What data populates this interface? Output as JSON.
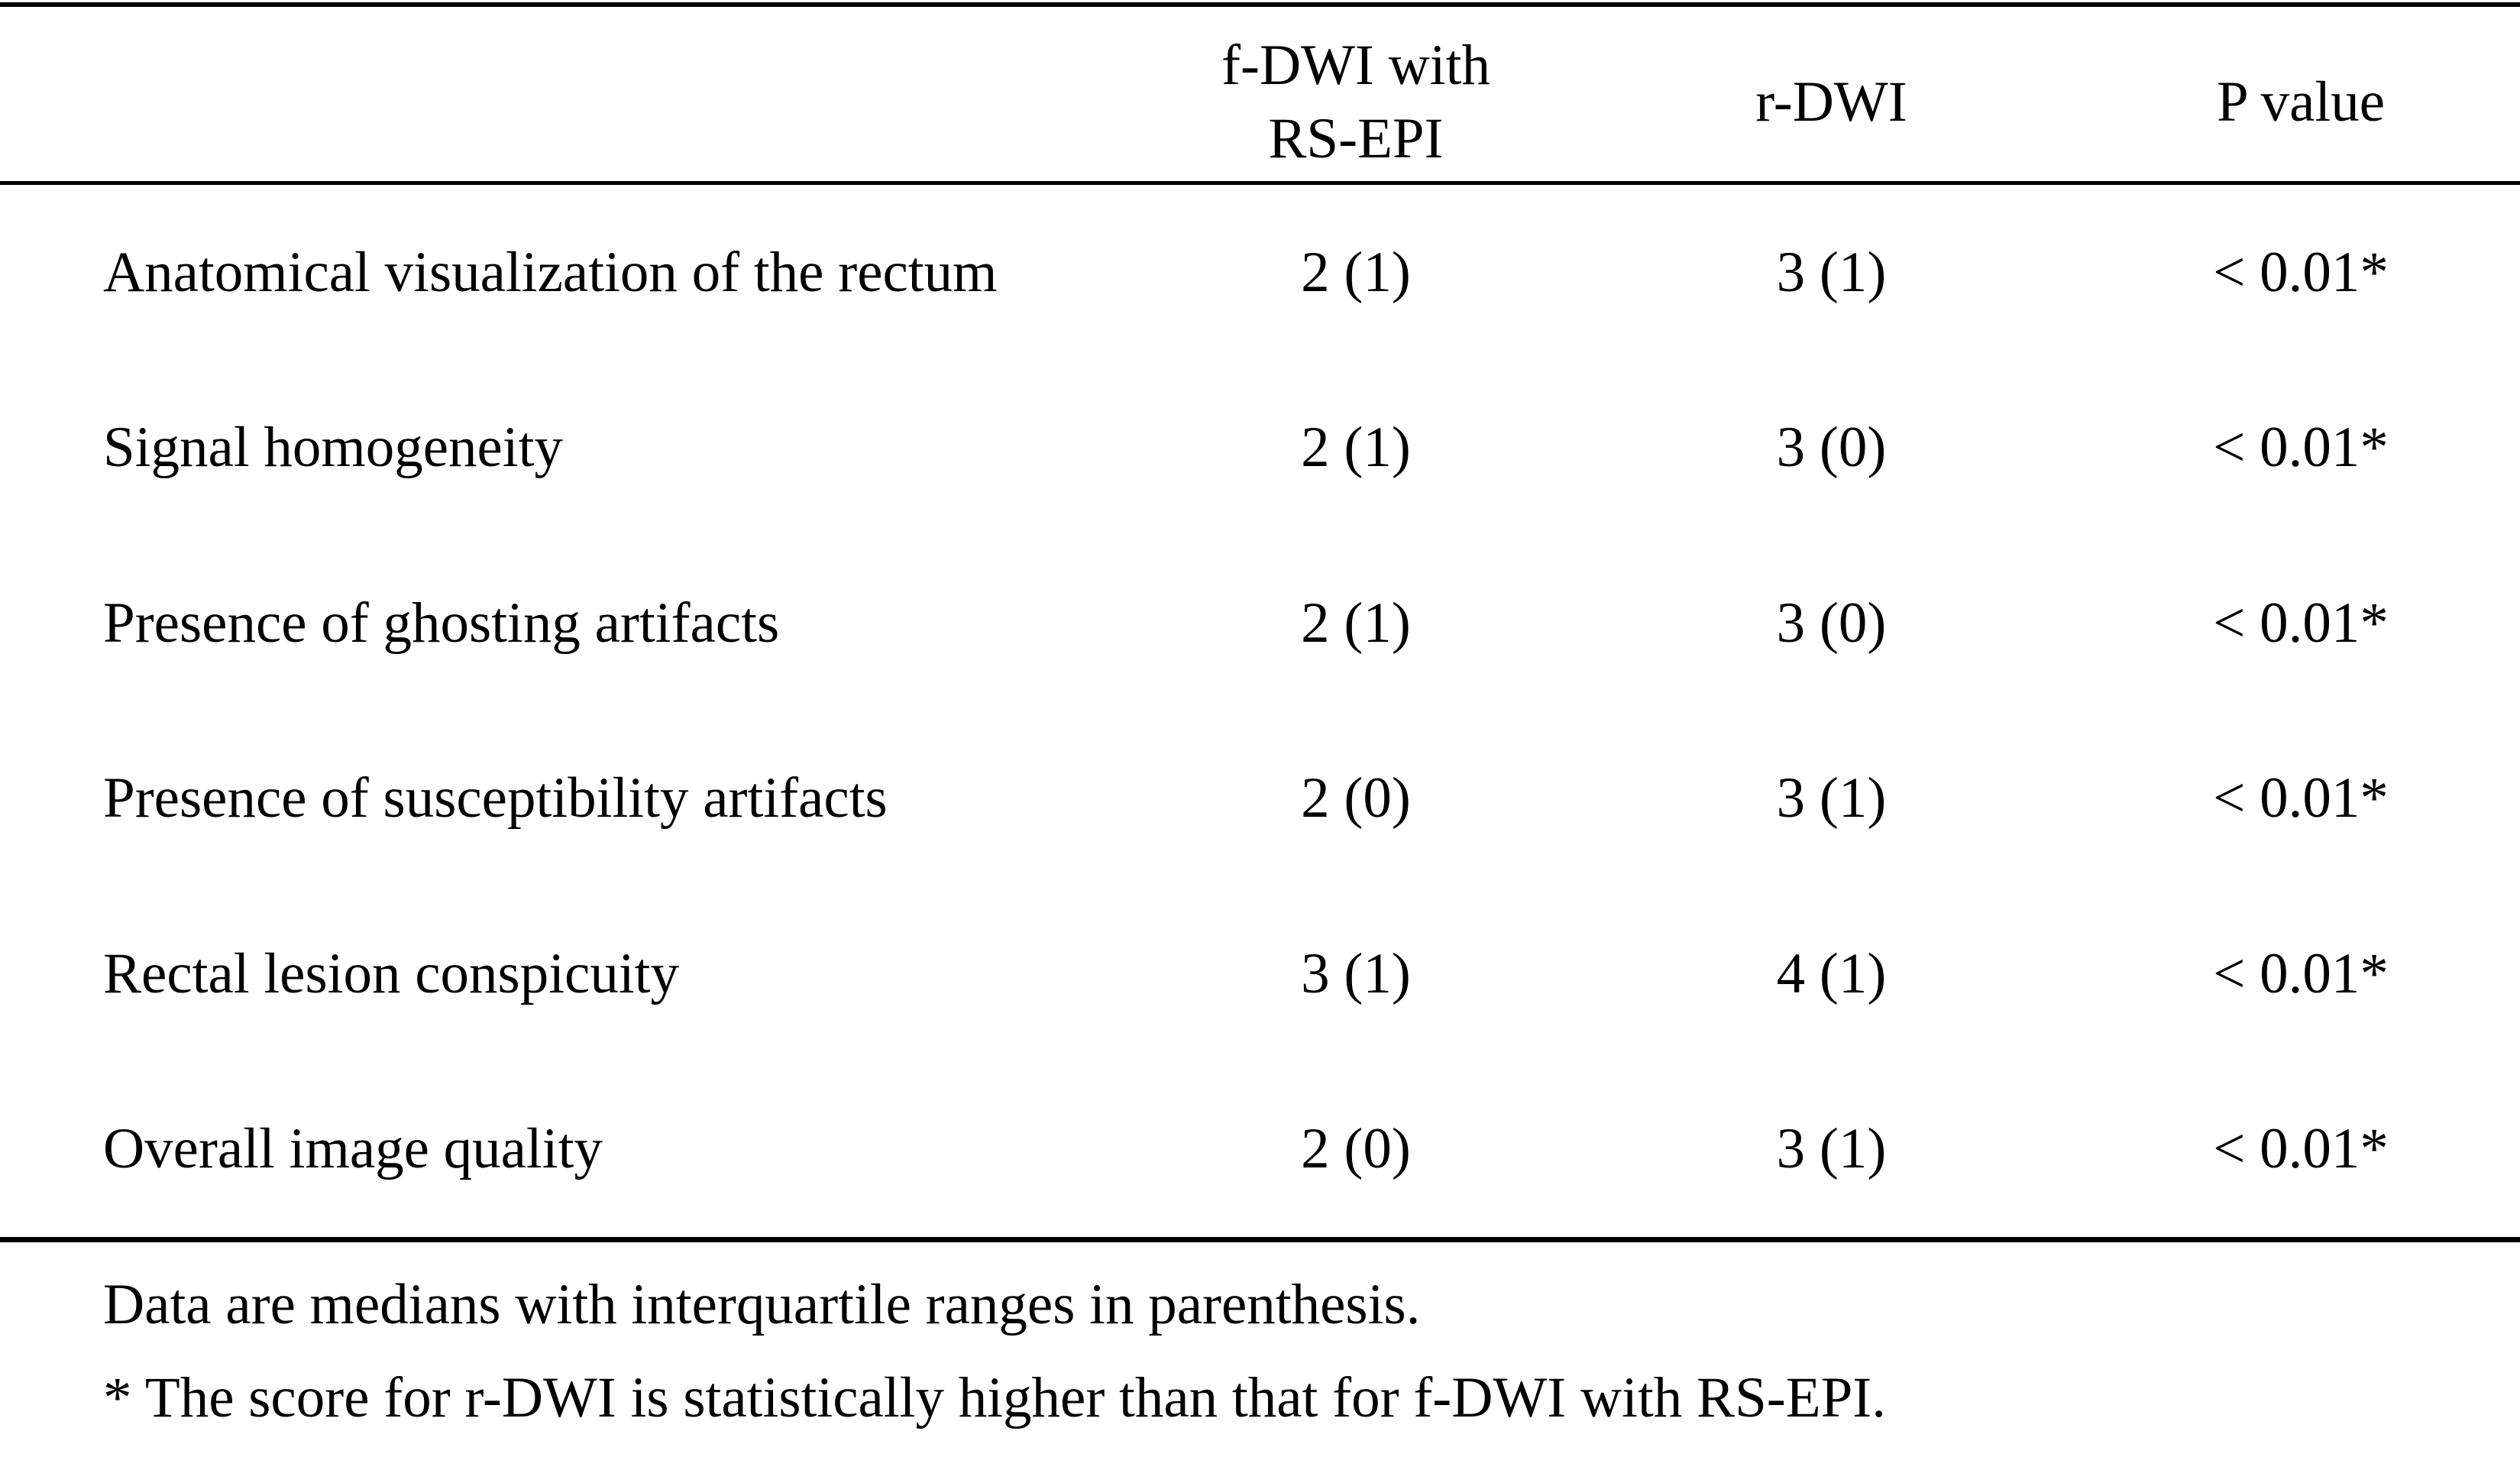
{
  "page": {
    "background": "#ffffff",
    "text_color": "#000000"
  },
  "table": {
    "header": {
      "method1_line1": "f-DWI with",
      "method1_line2": "RS-EPI",
      "method2": "r-DWI",
      "pvalue": "P value"
    },
    "rows": [
      {
        "label": "Anatomical visualization of the rectum",
        "fdwi_rsepi": "2 (1)",
        "rdwi": "3 (1)",
        "p_value": "< 0.01*"
      },
      {
        "label": "Signal homogeneity",
        "fdwi_rsepi": "2 (1)",
        "rdwi": "3 (0)",
        "p_value": "< 0.01*"
      },
      {
        "label": "Presence of ghosting artifacts",
        "fdwi_rsepi": "2 (1)",
        "rdwi": "3 (0)",
        "p_value": "< 0.01*"
      },
      {
        "label": "Presence of susceptibility artifacts",
        "fdwi_rsepi": "2 (0)",
        "rdwi": "3 (1)",
        "p_value": "< 0.01*"
      },
      {
        "label": "Rectal lesion conspicuity",
        "fdwi_rsepi": "3 (1)",
        "rdwi": "4 (1)",
        "p_value": "< 0.01*"
      },
      {
        "label": "Overall image quality",
        "fdwi_rsepi": "2 (0)",
        "rdwi": "3 (1)",
        "p_value": "< 0.01*"
      }
    ],
    "footnotes": [
      "Data are medians with interquartile ranges in parenthesis.",
      "* The score for r-DWI is statistically higher than that for f-DWI with RS-EPI."
    ]
  },
  "chart_data": {
    "type": "table",
    "columns": [
      "",
      "f-DWI with RS-EPI",
      "r-DWI",
      "P value"
    ],
    "rows": [
      [
        "Anatomical visualization of the rectum",
        "2 (1)",
        "3 (1)",
        "< 0.01*"
      ],
      [
        "Signal homogeneity",
        "2 (1)",
        "3 (0)",
        "< 0.01*"
      ],
      [
        "Presence of ghosting artifacts",
        "2 (1)",
        "3 (0)",
        "< 0.01*"
      ],
      [
        "Presence of susceptibility artifacts",
        "2 (0)",
        "3 (1)",
        "< 0.01*"
      ],
      [
        "Rectal lesion conspicuity",
        "3 (1)",
        "4 (1)",
        "< 0.01*"
      ],
      [
        "Overall image quality",
        "2 (0)",
        "3 (1)",
        "< 0.01*"
      ]
    ],
    "notes": [
      "Data are medians with interquartile ranges in parenthesis.",
      "* The score for r-DWI is statistically higher than that for f-DWI with RS-EPI."
    ]
  }
}
